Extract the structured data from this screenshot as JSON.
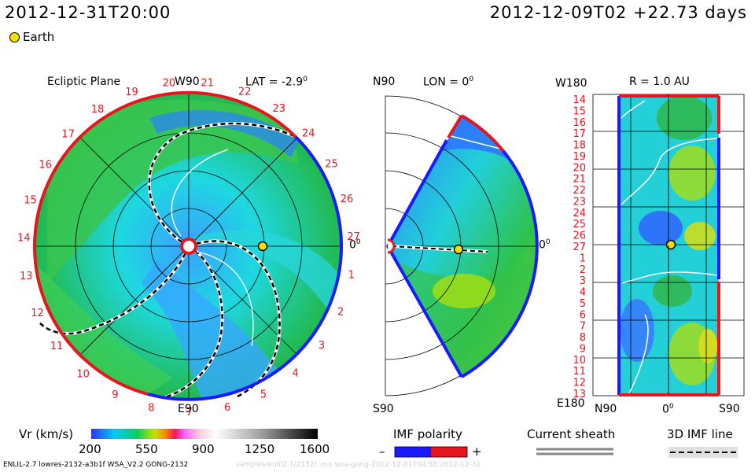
{
  "header": {
    "time_left": "2012-12-31T20:00",
    "time_right": "2012-12-09T02 +22.73 days"
  },
  "legend": {
    "earth_label": "Earth"
  },
  "panels": {
    "ecliptic": {
      "title": "Ecliptic Plane",
      "top_label": "W90",
      "lat_label": "LAT = -2.9",
      "deg": "0",
      "right_label": "0",
      "bottom_label": "E90",
      "ticks": [
        "20",
        "21",
        "22",
        "23",
        "24",
        "25",
        "26",
        "27",
        "1",
        "2",
        "3",
        "4",
        "5",
        "6",
        "7",
        "8",
        "9",
        "10",
        "11",
        "12",
        "13",
        "14",
        "15",
        "16",
        "17",
        "18",
        "19"
      ]
    },
    "meridional": {
      "top_label": "N90",
      "lon_label": "LON = 0",
      "deg": "0",
      "right_label": "0",
      "bottom_label": "S90"
    },
    "radial": {
      "top_label": "W180",
      "r_label": "R = 1.0 AU",
      "bottom_left": "E180",
      "bottom_n": "N90",
      "bottom_mid": "0",
      "bottom_s": "S90",
      "rows": [
        "14",
        "15",
        "16",
        "17",
        "18",
        "19",
        "20",
        "21",
        "22",
        "23",
        "24",
        "25",
        "26",
        "27",
        "1",
        "2",
        "3",
        "4",
        "5",
        "6",
        "7",
        "8",
        "9",
        "10",
        "11",
        "12",
        "13"
      ]
    }
  },
  "colorbar": {
    "label": "Vr (km/s)",
    "ticks": [
      "200",
      "550",
      "900",
      "1250",
      "1600"
    ]
  },
  "imf": {
    "title": "IMF polarity",
    "minus": "–",
    "plus": "+"
  },
  "sheath": {
    "title": "Current sheath"
  },
  "imf3d": {
    "title": "3D IMF line"
  },
  "footer": {
    "text": "ENLIL-2.7 lowres-2132-a3b1f WSA_V2.2 GONG-2132",
    "ghost": "samples/enlil2.7/2132/..mx-wsa-gong-2012-12-01T04:58:2012-12-31"
  },
  "colors": {
    "red": "#e8141e",
    "blue": "#1a1aff",
    "earth": "#f4e000"
  }
}
